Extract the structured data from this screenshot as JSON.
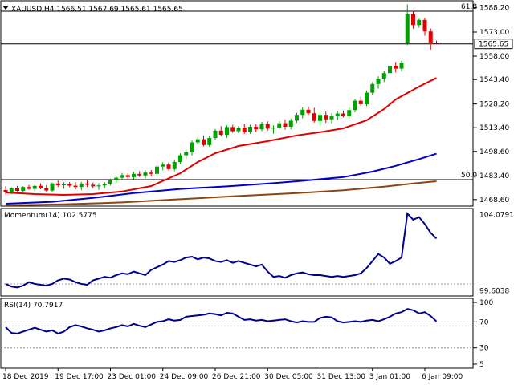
{
  "colors": {
    "bull": "#00a000",
    "bear": "#e00000",
    "ema_red": "#e00000",
    "sma_blue": "#0000c8",
    "sma_brown": "#8b4513",
    "osc_line": "#00008b",
    "grid_dash": "#999999"
  },
  "header": {
    "triangle_icon": "dropdown-triangle-icon",
    "ohlc_label": "XAUUSD,H4  1566.51 1567.69 1565.61 1565.65"
  },
  "chart_data": [
    {
      "type": "candlestick",
      "symbol": "XAUUSD",
      "timeframe": "H4",
      "ohlc_current": {
        "open": 1566.51,
        "high": 1567.69,
        "low": 1565.61,
        "close": 1565.65
      },
      "ylim": [
        1465.0,
        1592.0
      ],
      "y_ticks": [
        "1588.20",
        "1573.00",
        "1558.00",
        "1543.40",
        "1528.20",
        "1513.40",
        "1498.60",
        "1483.40",
        "1468.60"
      ],
      "current_price": "1565.65",
      "levels": [
        {
          "label": "61.8",
          "value": 1586.0
        },
        {
          "label": "",
          "value": 1565.65
        },
        {
          "label": "50.0",
          "value": 1481.0
        }
      ],
      "x_tick_labels": [
        "18 Dec 2019",
        "19 Dec 17:00",
        "23 Dec 01:00",
        "24 Dec 09:00",
        "26 Dec 21:00",
        "30 Dec 05:00",
        "31 Dec 13:00",
        "3 Jan 01:00",
        "6 Jan 09:00"
      ],
      "candles": [
        [
          1474.5,
          1476.8,
          1471.6,
          1473.4
        ],
        [
          1473.4,
          1476.2,
          1471.8,
          1475.6
        ],
        [
          1475.6,
          1477.1,
          1473.6,
          1474.0
        ],
        [
          1474.0,
          1476.9,
          1472.7,
          1476.4
        ],
        [
          1476.4,
          1477.7,
          1474.7,
          1475.2
        ],
        [
          1475.2,
          1477.7,
          1473.8,
          1477.1
        ],
        [
          1477.1,
          1478.7,
          1475.0,
          1475.8
        ],
        [
          1475.8,
          1477.5,
          1473.3,
          1474.2
        ],
        [
          1474.2,
          1479.2,
          1473.2,
          1478.6
        ],
        [
          1478.6,
          1480.4,
          1476.4,
          1477.5
        ],
        [
          1477.5,
          1479.4,
          1475.3,
          1478.0
        ],
        [
          1478.0,
          1479.5,
          1476.3,
          1477.2
        ],
        [
          1477.2,
          1479.4,
          1474.9,
          1476.4
        ],
        [
          1476.4,
          1479.6,
          1474.4,
          1478.6
        ],
        [
          1478.6,
          1480.6,
          1476.5,
          1477.8
        ],
        [
          1477.8,
          1479.1,
          1475.6,
          1476.8
        ],
        [
          1476.8,
          1478.7,
          1474.6,
          1477.4
        ],
        [
          1477.4,
          1479.4,
          1475.6,
          1478.4
        ],
        [
          1478.4,
          1481.7,
          1477.3,
          1480.6
        ],
        [
          1480.6,
          1483.5,
          1479.0,
          1482.2
        ],
        [
          1482.2,
          1485.2,
          1480.8,
          1483.8
        ],
        [
          1483.8,
          1485.0,
          1480.9,
          1482.6
        ],
        [
          1482.6,
          1485.8,
          1481.1,
          1484.6
        ],
        [
          1484.6,
          1486.4,
          1482.7,
          1483.6
        ],
        [
          1483.6,
          1486.8,
          1481.8,
          1485.4
        ],
        [
          1485.4,
          1487.1,
          1483.2,
          1484.6
        ],
        [
          1484.6,
          1490.2,
          1483.6,
          1489.2
        ],
        [
          1489.2,
          1491.9,
          1486.8,
          1490.4
        ],
        [
          1490.4,
          1491.7,
          1486.8,
          1487.6
        ],
        [
          1487.6,
          1493.1,
          1486.3,
          1492.0
        ],
        [
          1492.0,
          1497.4,
          1490.7,
          1496.2
        ],
        [
          1496.2,
          1499.5,
          1493.9,
          1498.0
        ],
        [
          1498.0,
          1505.4,
          1496.1,
          1504.2
        ],
        [
          1504.2,
          1507.6,
          1503.0,
          1506.2
        ],
        [
          1506.2,
          1508.6,
          1501.8,
          1502.6
        ],
        [
          1502.6,
          1508.4,
          1501.5,
          1507.0
        ],
        [
          1507.0,
          1512.6,
          1506.0,
          1511.6
        ],
        [
          1511.6,
          1514.4,
          1508.0,
          1509.0
        ],
        [
          1509.0,
          1514.9,
          1507.1,
          1513.8
        ],
        [
          1513.8,
          1515.2,
          1510.2,
          1511.2
        ],
        [
          1511.2,
          1514.4,
          1510.0,
          1513.4
        ],
        [
          1513.4,
          1515.6,
          1509.6,
          1510.6
        ],
        [
          1510.6,
          1515.3,
          1509.6,
          1514.0
        ],
        [
          1514.0,
          1515.5,
          1510.8,
          1512.4
        ],
        [
          1512.4,
          1517.0,
          1511.3,
          1515.6
        ],
        [
          1515.6,
          1517.4,
          1511.6,
          1512.8
        ],
        [
          1512.8,
          1514.8,
          1509.7,
          1513.4
        ],
        [
          1513.4,
          1517.3,
          1512.1,
          1516.2
        ],
        [
          1516.2,
          1518.4,
          1512.2,
          1514.0
        ],
        [
          1514.0,
          1519.0,
          1512.4,
          1517.8
        ],
        [
          1517.8,
          1522.6,
          1516.5,
          1521.4
        ],
        [
          1521.4,
          1526.0,
          1519.2,
          1524.6
        ],
        [
          1524.6,
          1526.5,
          1521.4,
          1522.4
        ],
        [
          1522.4,
          1525.8,
          1516.6,
          1517.6
        ],
        [
          1517.6,
          1523.0,
          1514.8,
          1521.4
        ],
        [
          1521.4,
          1523.4,
          1516.4,
          1518.6
        ],
        [
          1518.6,
          1522.5,
          1516.1,
          1520.8
        ],
        [
          1520.8,
          1523.8,
          1518.3,
          1522.2
        ],
        [
          1522.2,
          1524.1,
          1519.8,
          1520.6
        ],
        [
          1520.6,
          1526.1,
          1519.1,
          1524.4
        ],
        [
          1524.4,
          1531.4,
          1523.0,
          1530.2
        ],
        [
          1530.2,
          1532.8,
          1526.7,
          1528.0
        ],
        [
          1528.0,
          1536.6,
          1526.9,
          1535.2
        ],
        [
          1535.2,
          1541.8,
          1533.7,
          1540.6
        ],
        [
          1540.6,
          1545.4,
          1537.7,
          1544.0
        ],
        [
          1544.0,
          1548.5,
          1541.8,
          1547.4
        ],
        [
          1547.4,
          1553.0,
          1545.3,
          1552.0
        ],
        [
          1552.0,
          1554.4,
          1547.8,
          1550.2
        ],
        [
          1550.2,
          1555.1,
          1548.4,
          1554.0
        ],
        [
          1566.4,
          1590.3,
          1564.8,
          1584.0
        ],
        [
          1584.0,
          1586.2,
          1575.2,
          1577.4
        ],
        [
          1577.4,
          1581.4,
          1575.7,
          1580.6
        ],
        [
          1580.6,
          1581.9,
          1570.7,
          1573.4
        ],
        [
          1573.4,
          1575.2,
          1562.0,
          1566.5
        ],
        [
          1566.5,
          1567.7,
          1565.6,
          1565.7
        ]
      ],
      "ema_red": [
        [
          0,
          1473.0
        ],
        [
          5,
          1472.0
        ],
        [
          10,
          1471.5
        ],
        [
          15,
          1472.0
        ],
        [
          20,
          1473.6
        ],
        [
          25,
          1477.0
        ],
        [
          30,
          1485.0
        ],
        [
          33,
          1492.0
        ],
        [
          36,
          1497.5
        ],
        [
          40,
          1502.0
        ],
        [
          45,
          1505.0
        ],
        [
          50,
          1508.6
        ],
        [
          54,
          1510.6
        ],
        [
          58,
          1513.0
        ],
        [
          62,
          1518.0
        ],
        [
          65,
          1525.0
        ],
        [
          67,
          1531.0
        ],
        [
          69,
          1535.0
        ],
        [
          71,
          1539.0
        ],
        [
          74,
          1544.4
        ]
      ],
      "sma_blue": [
        [
          0,
          1466.0
        ],
        [
          8,
          1467.2
        ],
        [
          15,
          1469.6
        ],
        [
          22,
          1472.6
        ],
        [
          30,
          1475.2
        ],
        [
          38,
          1476.8
        ],
        [
          46,
          1478.8
        ],
        [
          52,
          1480.6
        ],
        [
          58,
          1482.6
        ],
        [
          63,
          1486.0
        ],
        [
          67,
          1489.6
        ],
        [
          71,
          1493.8
        ],
        [
          74,
          1497.2
        ]
      ],
      "sma_brown": [
        [
          0,
          1465.0
        ],
        [
          10,
          1465.6
        ],
        [
          20,
          1466.8
        ],
        [
          30,
          1468.8
        ],
        [
          40,
          1470.8
        ],
        [
          50,
          1472.6
        ],
        [
          58,
          1474.4
        ],
        [
          65,
          1476.6
        ],
        [
          70,
          1478.6
        ],
        [
          74,
          1480.0
        ]
      ]
    },
    {
      "type": "line",
      "indicator": "Momentum(14)",
      "label": "Momentum(14) 102.5775",
      "current_value": 102.5775,
      "top_tick": "104.0791",
      "bottom_tick": "99.6038",
      "ylim": [
        99.45,
        104.15
      ],
      "level": 100.0,
      "values": [
        100.0,
        99.85,
        99.8,
        99.9,
        100.1,
        100.0,
        99.95,
        99.9,
        100.0,
        100.2,
        100.3,
        100.25,
        100.1,
        100.0,
        99.95,
        100.2,
        100.3,
        100.4,
        100.35,
        100.5,
        100.6,
        100.55,
        100.7,
        100.6,
        100.5,
        100.8,
        100.95,
        101.1,
        101.3,
        101.25,
        101.35,
        101.5,
        101.55,
        101.4,
        101.5,
        101.45,
        101.3,
        101.25,
        101.35,
        101.2,
        101.3,
        101.2,
        101.1,
        101.0,
        101.1,
        100.7,
        100.4,
        100.45,
        100.35,
        100.5,
        100.6,
        100.65,
        100.55,
        100.5,
        100.5,
        100.45,
        100.4,
        100.45,
        100.4,
        100.45,
        100.5,
        100.6,
        100.9,
        101.3,
        101.7,
        101.5,
        101.15,
        101.3,
        101.5,
        104.0,
        103.65,
        103.8,
        103.4,
        102.9,
        102.58
      ]
    },
    {
      "type": "line",
      "indicator": "RSI(14)",
      "label": "RSI(14) 70.7917",
      "current_value": 70.7917,
      "ylim": [
        0,
        105
      ],
      "y_ticks": [
        "100",
        "70",
        "30",
        "5"
      ],
      "levels": [
        70,
        30
      ],
      "values": [
        62,
        53,
        52,
        55,
        58,
        61,
        58,
        55,
        57,
        52,
        55,
        62,
        65,
        63,
        60,
        58,
        55,
        57,
        60,
        62,
        65,
        63,
        67,
        64,
        62,
        66,
        70,
        71,
        74,
        72,
        73,
        78,
        79,
        80,
        81,
        83,
        82,
        80,
        84,
        83,
        78,
        73,
        74,
        72,
        73,
        71,
        72,
        73,
        74,
        71,
        69,
        71,
        70,
        70,
        76,
        78,
        77,
        71,
        69,
        70,
        71,
        70,
        72,
        73,
        71,
        74,
        78,
        83,
        85,
        90,
        88,
        83,
        85,
        79,
        70.8
      ]
    }
  ]
}
